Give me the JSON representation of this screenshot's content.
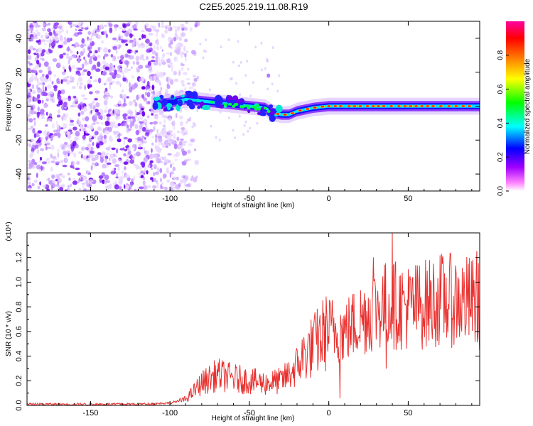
{
  "title": "C2E5.2025.219.11.08.R19",
  "chart_data": [
    {
      "type": "heatmap",
      "xlabel": "Height of straight line (km)",
      "ylabel": "Frequency (Hz)",
      "xlim": [
        -190,
        95
      ],
      "ylim": [
        -50,
        50
      ],
      "x_ticks": [
        -150,
        -100,
        -50,
        0,
        50
      ],
      "y_ticks": [
        -40,
        -20,
        0,
        20,
        40
      ],
      "colorbar": {
        "label": "Normalized spectral amplitude",
        "range": [
          0,
          1
        ],
        "ticks": [
          "0.0",
          "0.2",
          "0.4",
          "0.6",
          "0.8"
        ],
        "colors": [
          "#ffffff",
          "#ff80ff",
          "#a000ff",
          "#0000ff",
          "#00ffff",
          "#00ff00",
          "#ffff00",
          "#ff8000",
          "#ff0000",
          "#ff00a0"
        ]
      },
      "track": {
        "x": [
          -110,
          -100,
          -90,
          -80,
          -70,
          -60,
          -50,
          -40,
          -35,
          -30,
          -25,
          -20,
          -15,
          -10,
          0,
          10,
          20,
          30,
          40,
          50,
          60,
          70,
          80,
          90
        ],
        "freq": [
          1,
          2,
          4,
          3,
          2,
          1,
          0,
          -1,
          -4,
          -5,
          -5,
          -3,
          -2,
          -1,
          0,
          0,
          0,
          0,
          0,
          0,
          0,
          0,
          0,
          0
        ]
      },
      "noise_region_x": [
        -190,
        -90
      ]
    },
    {
      "type": "line",
      "xlabel": "Height of straight line (km)",
      "ylabel": "SNR (10 * v/v)",
      "scale_label": "(x10⁴)",
      "xlim": [
        -190,
        95
      ],
      "ylim": [
        0,
        1.4
      ],
      "x_ticks": [
        -150,
        -100,
        -50,
        0,
        50
      ],
      "y_ticks": [
        "0.0",
        "0.2",
        "0.4",
        "0.6",
        "0.8",
        "1.0",
        "1.2"
      ],
      "color": "#e8302e",
      "trend": {
        "x": [
          -190,
          -120,
          -100,
          -90,
          -80,
          -70,
          -60,
          -50,
          -40,
          -30,
          -25,
          -20,
          -15,
          -10,
          -5,
          0,
          10,
          20,
          30,
          40,
          50,
          60,
          70,
          80,
          90,
          95
        ],
        "y": [
          0.01,
          0.01,
          0.02,
          0.05,
          0.18,
          0.25,
          0.22,
          0.2,
          0.18,
          0.2,
          0.25,
          0.32,
          0.42,
          0.48,
          0.55,
          0.62,
          0.6,
          0.7,
          0.8,
          0.82,
          0.8,
          0.82,
          0.86,
          0.85,
          0.84,
          0.8
        ]
      },
      "highlights": [
        {
          "x": 40,
          "y": 1.4
        },
        {
          "x": 93,
          "y": 1.25
        },
        {
          "x": 28,
          "y": 1.2
        },
        {
          "x": 7,
          "y": 0.06
        },
        {
          "x": 36,
          "y": 0.3
        }
      ]
    }
  ]
}
